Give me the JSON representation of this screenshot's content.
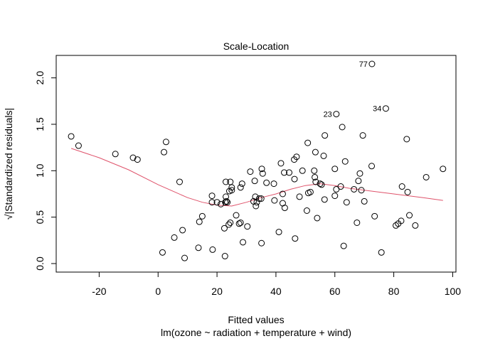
{
  "chart_data": {
    "type": "scatter",
    "title": "Scale-Location",
    "xlabel": "Fitted values",
    "xlabel_sub": "lm(ozone ~ radiation + temperature + wind)",
    "ylabel": "√|Standardized residuals|",
    "xlim": [
      -30,
      97
    ],
    "ylim": [
      0.0,
      2.15
    ],
    "xticks": [
      -20,
      0,
      20,
      40,
      60,
      80,
      100
    ],
    "yticks": [
      0.0,
      0.5,
      1.0,
      1.5,
      2.0
    ],
    "xtick_labels": [
      "-20",
      "0",
      "20",
      "40",
      "60",
      "80",
      "100"
    ],
    "ytick_labels": [
      "0.0",
      "0.5",
      "1.0",
      "1.5",
      "2.0"
    ],
    "points": [
      [
        -29.5,
        1.37
      ],
      [
        -27,
        1.27
      ],
      [
        -14.5,
        1.18
      ],
      [
        -8.5,
        1.14
      ],
      [
        -7,
        1.12
      ],
      [
        1.5,
        0.12
      ],
      [
        2,
        1.2
      ],
      [
        2.7,
        1.31
      ],
      [
        5.5,
        0.28
      ],
      [
        7.3,
        0.88
      ],
      [
        8.3,
        0.36
      ],
      [
        9,
        0.06
      ],
      [
        13.7,
        0.17
      ],
      [
        14,
        0.45
      ],
      [
        15,
        0.51
      ],
      [
        18.3,
        0.73
      ],
      [
        18.3,
        0.66
      ],
      [
        18.5,
        0.15
      ],
      [
        20,
        0.66
      ],
      [
        21.3,
        0.64
      ],
      [
        22.5,
        0.38
      ],
      [
        22.7,
        0.08
      ],
      [
        22.8,
        0.66
      ],
      [
        23,
        0.88
      ],
      [
        23,
        0.72
      ],
      [
        23.2,
        0.67
      ],
      [
        23.5,
        0.66
      ],
      [
        24,
        0.42
      ],
      [
        24.2,
        0.78
      ],
      [
        24.5,
        0.88
      ],
      [
        24.5,
        0.44
      ],
      [
        25,
        0.79
      ],
      [
        25,
        0.82
      ],
      [
        26.5,
        0.52
      ],
      [
        27.5,
        0.43
      ],
      [
        28,
        0.44
      ],
      [
        28,
        0.82
      ],
      [
        28.5,
        0.86
      ],
      [
        28.8,
        0.23
      ],
      [
        30.3,
        0.4
      ],
      [
        31.3,
        0.99
      ],
      [
        32.4,
        0.67
      ],
      [
        32.8,
        0.89
      ],
      [
        33,
        0.72
      ],
      [
        33.2,
        0.62
      ],
      [
        33.5,
        0.66
      ],
      [
        34.3,
        0.7
      ],
      [
        35,
        0.7
      ],
      [
        35.2,
        1.02
      ],
      [
        35.5,
        0.97
      ],
      [
        35.1,
        0.22
      ],
      [
        36.8,
        0.87
      ],
      [
        39.3,
        0.86
      ],
      [
        39.5,
        0.68
      ],
      [
        41,
        0.34
      ],
      [
        41.7,
        1.08
      ],
      [
        42.3,
        0.75
      ],
      [
        42.3,
        0.65
      ],
      [
        42.8,
        0.98
      ],
      [
        43,
        0.6
      ],
      [
        44.5,
        0.98
      ],
      [
        46.2,
        1.12
      ],
      [
        46.3,
        0.91
      ],
      [
        46.5,
        0.27
      ],
      [
        47,
        1.15
      ],
      [
        48,
        0.72
      ],
      [
        49,
        1.0
      ],
      [
        50.5,
        0.57
      ],
      [
        50.8,
        1.3
      ],
      [
        51,
        0.76
      ],
      [
        51.7,
        0.77
      ],
      [
        53,
        1.0
      ],
      [
        53.2,
        0.93
      ],
      [
        53.4,
        1.2
      ],
      [
        53.5,
        0.88
      ],
      [
        54,
        0.49
      ],
      [
        55,
        0.86
      ],
      [
        55.5,
        0.85
      ],
      [
        56.2,
        1.16
      ],
      [
        56.5,
        0.69
      ],
      [
        56.6,
        1.38
      ],
      [
        60,
        1.02
      ],
      [
        60,
        0.73
      ],
      [
        60.5,
        0.8
      ],
      [
        62,
        0.83
      ],
      [
        62.5,
        1.47
      ],
      [
        63,
        0.19
      ],
      [
        63.5,
        1.1
      ],
      [
        64,
        0.66
      ],
      [
        66.5,
        0.8
      ],
      [
        67.5,
        0.44
      ],
      [
        68,
        0.89
      ],
      [
        68.5,
        0.97
      ],
      [
        69,
        0.79
      ],
      [
        69.5,
        1.38
      ],
      [
        70,
        0.67
      ],
      [
        72.5,
        1.05
      ],
      [
        73.5,
        0.51
      ],
      [
        75.8,
        0.12
      ],
      [
        80.7,
        0.41
      ],
      [
        81.5,
        0.43
      ],
      [
        82.5,
        0.46
      ],
      [
        82.8,
        0.83
      ],
      [
        84.4,
        1.34
      ],
      [
        84.7,
        0.77
      ],
      [
        85.3,
        0.52
      ],
      [
        87.3,
        0.41
      ],
      [
        91,
        0.93
      ],
      [
        96.7,
        1.02
      ],
      [
        60.5,
        1.61
      ],
      [
        77.3,
        1.67
      ],
      [
        72.6,
        2.15
      ]
    ],
    "labeled_points": [
      {
        "label": "23",
        "x": 60.5,
        "y": 1.61
      },
      {
        "label": "34",
        "x": 77.3,
        "y": 1.67
      },
      {
        "label": "77",
        "x": 72.6,
        "y": 2.15
      }
    ],
    "smooth_line": {
      "color": "#DF536B",
      "x": [
        -29.5,
        -20,
        -10,
        0,
        5,
        10,
        15,
        20,
        25,
        30,
        35,
        40,
        45,
        50,
        55,
        60,
        65,
        70,
        75,
        80,
        85,
        90,
        96.7
      ],
      "y": [
        1.24,
        1.14,
        1.01,
        0.85,
        0.78,
        0.71,
        0.66,
        0.63,
        0.62,
        0.66,
        0.71,
        0.75,
        0.8,
        0.84,
        0.86,
        0.84,
        0.81,
        0.79,
        0.77,
        0.75,
        0.73,
        0.71,
        0.68
      ]
    },
    "grid": false,
    "point_style": "open circle"
  }
}
